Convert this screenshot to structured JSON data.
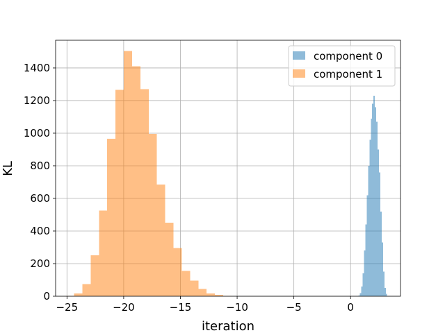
{
  "chart_data": {
    "type": "bar",
    "title": "",
    "xlabel": "iteration",
    "ylabel": "KL",
    "xlim": [
      -26,
      4.4
    ],
    "ylim": [
      0,
      1570
    ],
    "grid": true,
    "legend_position": "top-right",
    "x_ticks": [
      -25,
      -20,
      -15,
      -10,
      -5,
      0
    ],
    "x_tick_labels": [
      "−25",
      "−20",
      "−15",
      "−10",
      "−5",
      "0"
    ],
    "y_ticks": [
      0,
      200,
      400,
      600,
      800,
      1000,
      1200,
      1400
    ],
    "y_tick_labels": [
      "0",
      "200",
      "400",
      "600",
      "800",
      "1000",
      "1200",
      "1400"
    ],
    "series": [
      {
        "name": "component 0",
        "color": "#1f77b4",
        "opacity": 0.5,
        "bin_start": 0.7,
        "bin_width": 0.12,
        "counts": [
          5,
          20,
          60,
          140,
          280,
          440,
          620,
          800,
          960,
          1090,
          1180,
          1230,
          1160,
          1070,
          900,
          760,
          520,
          330,
          150,
          50,
          15
        ]
      },
      {
        "name": "component 1",
        "color": "#ff7f0e",
        "opacity": 0.5,
        "bin_start": -25.1,
        "bin_width": 0.73,
        "counts": [
          2,
          18,
          75,
          250,
          525,
          965,
          1265,
          1505,
          1410,
          1270,
          995,
          685,
          450,
          295,
          155,
          95,
          45,
          18,
          8,
          2
        ]
      }
    ]
  }
}
